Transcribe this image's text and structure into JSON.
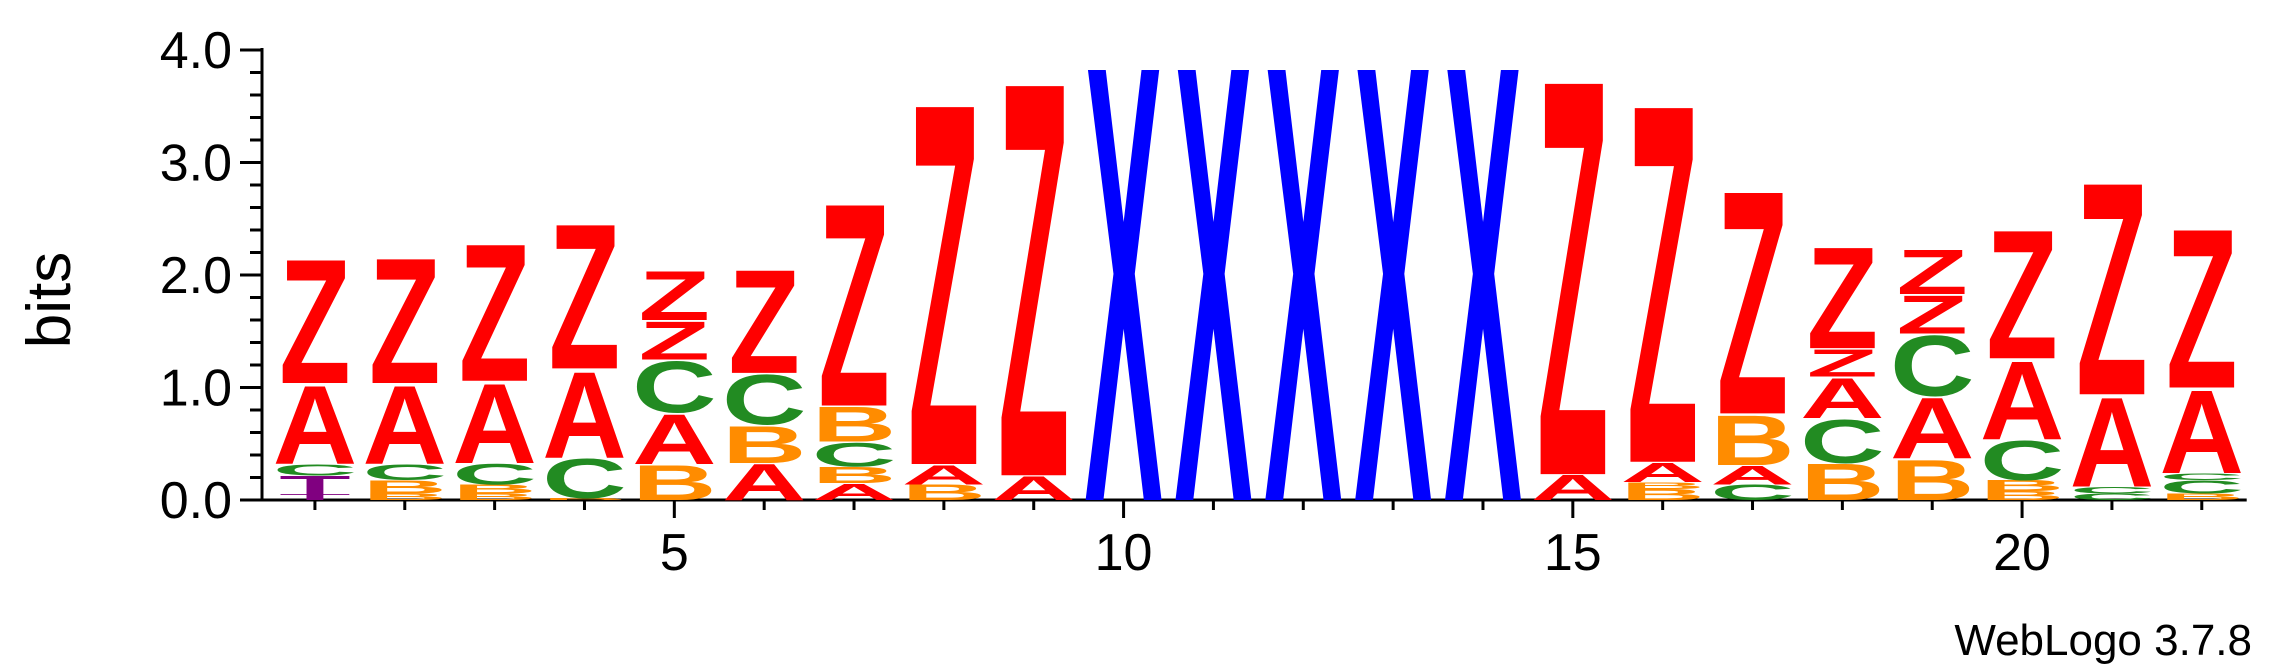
{
  "chart_data": {
    "type": "sequence-logo",
    "ylabel": "bits",
    "ylim": [
      0,
      4.0
    ],
    "yticks": [
      "0.0",
      "1.0",
      "2.0",
      "3.0",
      "4.0"
    ],
    "xticks": [
      5,
      10,
      15,
      20
    ],
    "positions": [
      1,
      2,
      3,
      4,
      5,
      6,
      7,
      8,
      9,
      10,
      11,
      12,
      13,
      14,
      15,
      16,
      17,
      18,
      19,
      20,
      21,
      22
    ],
    "colors": {
      "Z": "#ff0000",
      "A": "#ff0000",
      "X": "#0000ff",
      "C": "#228b22",
      "B": "#ff8c00",
      "T": "#800080"
    },
    "stacks": [
      [
        [
          "T",
          0.05
        ],
        [
          "T",
          0.17
        ],
        [
          "C",
          0.1
        ],
        [
          "A",
          0.72
        ],
        [
          "Z",
          1.14
        ]
      ],
      [
        [
          "B",
          0.06
        ],
        [
          "B",
          0.12
        ],
        [
          "C",
          0.14
        ],
        [
          "A",
          0.72
        ],
        [
          "Z",
          1.15
        ]
      ],
      [
        [
          "B",
          0.06
        ],
        [
          "B",
          0.08
        ],
        [
          "C",
          0.19
        ],
        [
          "A",
          0.73
        ],
        [
          "Z",
          1.26
        ]
      ],
      [
        [
          "B",
          0.02
        ],
        [
          "C",
          0.36
        ],
        [
          "A",
          0.79
        ],
        [
          "Z",
          1.33
        ]
      ],
      [
        [
          "B",
          0.32
        ],
        [
          "A",
          0.46
        ],
        [
          "C",
          0.47
        ],
        [
          "Z",
          0.35
        ],
        [
          "Z",
          0.45
        ]
      ],
      [
        [
          "A",
          0.33
        ],
        [
          "B",
          0.34
        ],
        [
          "C",
          0.46
        ],
        [
          "Z",
          0.95
        ]
      ],
      [
        [
          "A",
          0.15
        ],
        [
          "B",
          0.15
        ],
        [
          "C",
          0.22
        ],
        [
          "B",
          0.32
        ],
        [
          "Z",
          1.86
        ]
      ],
      [
        [
          "B",
          0.14
        ],
        [
          "A",
          0.18
        ],
        [
          "Z",
          3.32
        ]
      ],
      [
        [
          "A",
          0.22
        ],
        [
          "Z",
          3.62
        ]
      ],
      [
        [
          "X",
          4.0
        ]
      ],
      [
        [
          "X",
          4.0
        ]
      ],
      [
        [
          "X",
          4.0
        ]
      ],
      [
        [
          "X",
          4.0
        ]
      ],
      [
        [
          "X",
          4.0
        ]
      ],
      [
        [
          "A",
          0.23
        ],
        [
          "Z",
          3.63
        ]
      ],
      [
        [
          "B",
          0.1
        ],
        [
          "B",
          0.06
        ],
        [
          "A",
          0.18
        ],
        [
          "Z",
          3.29
        ]
      ],
      [
        [
          "C",
          0.14
        ],
        [
          "A",
          0.17
        ],
        [
          "B",
          0.46
        ],
        [
          "Z",
          2.05
        ]
      ],
      [
        [
          "B",
          0.33
        ],
        [
          "C",
          0.4
        ],
        [
          "A",
          0.37
        ],
        [
          "Z",
          0.25
        ],
        [
          "Z",
          0.93
        ]
      ],
      [
        [
          "B",
          0.37
        ],
        [
          "A",
          0.56
        ],
        [
          "C",
          0.55
        ],
        [
          "Z",
          0.35
        ],
        [
          "Z",
          0.41
        ]
      ],
      [
        [
          "B",
          0.08
        ],
        [
          "B",
          0.1
        ],
        [
          "C",
          0.36
        ],
        [
          "A",
          0.72
        ],
        [
          "Z",
          1.18
        ]
      ],
      [
        [
          "C",
          0.06
        ],
        [
          "C",
          0.06
        ],
        [
          "A",
          0.82
        ],
        [
          "Z",
          1.95
        ]
      ],
      [
        [
          "B",
          0.06
        ],
        [
          "C",
          0.12
        ],
        [
          "C",
          0.06
        ],
        [
          "A",
          0.76
        ],
        [
          "Z",
          1.46
        ]
      ]
    ]
  },
  "footer": {
    "credit": "WebLogo 3.7.8"
  }
}
